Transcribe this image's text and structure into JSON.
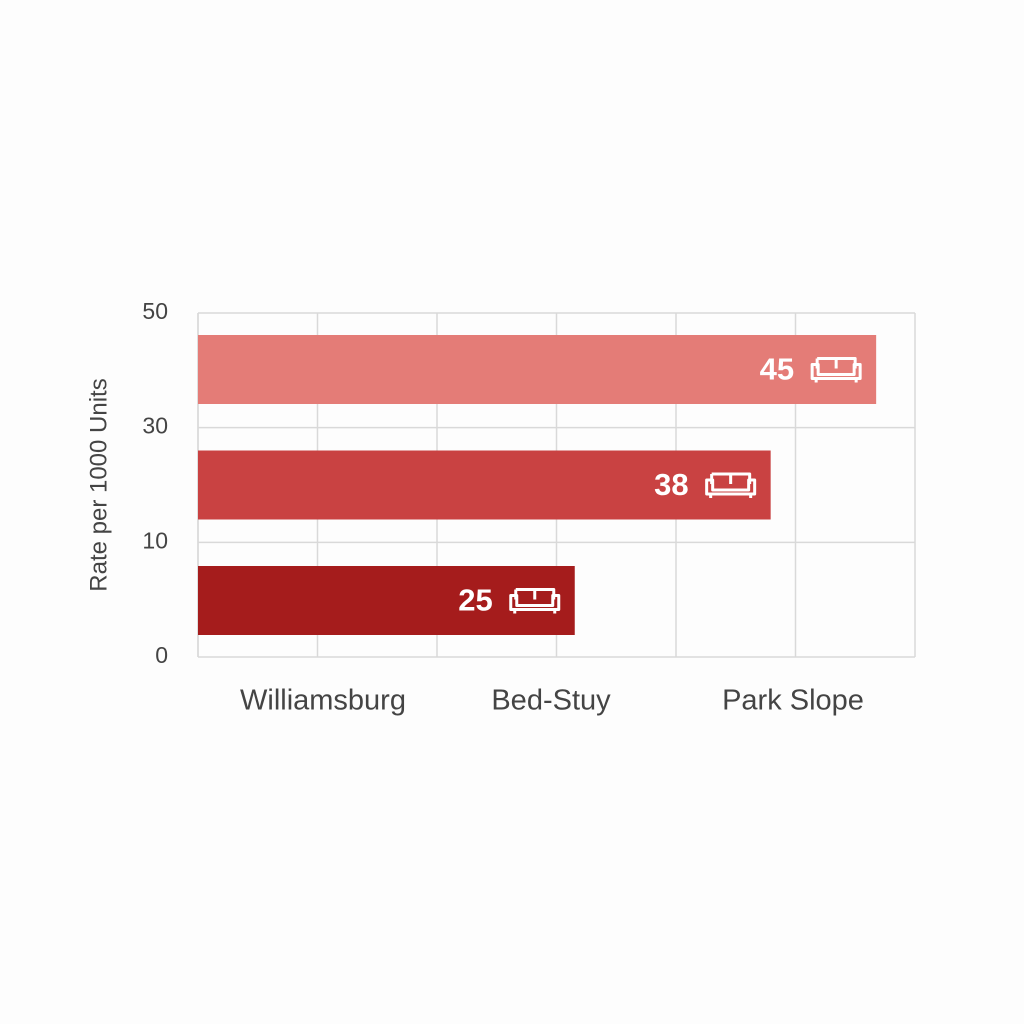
{
  "chart_data": {
    "type": "bar",
    "y_label": "Rate per 1000 Units",
    "categories": [
      "Williamsburg",
      "Bed-Stuy",
      "Park Slope"
    ],
    "values": [
      25,
      38,
      45
    ],
    "colors": [
      "#a51c1c",
      "#c94242",
      "#e47c77"
    ],
    "yticks": [
      0,
      10,
      30,
      50
    ],
    "grid": true
  }
}
